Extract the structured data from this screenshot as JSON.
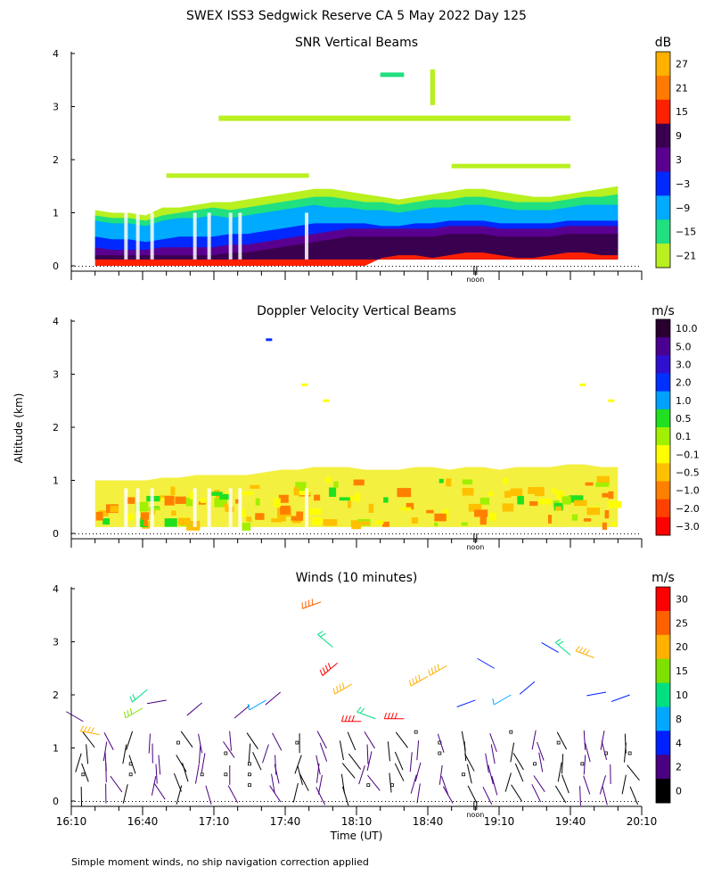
{
  "page_title": "SWEX ISS3 Sedgwick Reserve CA   5 May 2022 Day 125",
  "footnote": "Simple moment winds, no ship navigation correction applied",
  "chart_data": [
    {
      "type": "heatmap",
      "title": "SNR Vertical Beams",
      "ylabel": "",
      "xlabel": "",
      "ylim": [
        0,
        4
      ],
      "y_ticks": [
        "0",
        "1",
        "2",
        "3",
        "4"
      ],
      "noon_label": "noon",
      "colorbar_unit": "dB",
      "colorbar_labels": [
        "27",
        "21",
        "15",
        "9",
        "3",
        "−3",
        "−9",
        "−15",
        "−21"
      ],
      "colorbar_colors": [
        "#ffb000",
        "#ff7a00",
        "#ff2000",
        "#3a0050",
        "#5a0090",
        "#0028ff",
        "#00aaff",
        "#20e080",
        "#b8f020"
      ],
      "layers": [
        {
          "level": "-21",
          "color": "#b8f020",
          "top_km": [
            1.05,
            1.0,
            1.0,
            0.95,
            1.1,
            1.1,
            1.15,
            1.2,
            1.2,
            1.25,
            1.3,
            1.35,
            1.4,
            1.45,
            1.45,
            1.4,
            1.35,
            1.3,
            1.25,
            1.3,
            1.35,
            1.4,
            1.45,
            1.45,
            1.4,
            1.35,
            1.3,
            1.3,
            1.35,
            1.4,
            1.45,
            1.5
          ]
        },
        {
          "level": "-15",
          "color": "#20e080",
          "top_km": [
            0.95,
            0.9,
            0.9,
            0.85,
            0.95,
            1.0,
            1.05,
            1.1,
            1.05,
            1.1,
            1.15,
            1.2,
            1.25,
            1.3,
            1.3,
            1.25,
            1.2,
            1.2,
            1.15,
            1.2,
            1.25,
            1.25,
            1.3,
            1.3,
            1.25,
            1.2,
            1.2,
            1.2,
            1.25,
            1.3,
            1.3,
            1.35
          ]
        },
        {
          "level": "-9",
          "color": "#00aaff",
          "top_km": [
            0.85,
            0.8,
            0.8,
            0.75,
            0.85,
            0.9,
            0.9,
            0.95,
            0.9,
            0.95,
            1.0,
            1.05,
            1.1,
            1.15,
            1.1,
            1.1,
            1.05,
            1.05,
            1.0,
            1.05,
            1.1,
            1.1,
            1.15,
            1.15,
            1.1,
            1.05,
            1.05,
            1.05,
            1.1,
            1.15,
            1.15,
            1.15
          ]
        },
        {
          "level": "-3",
          "color": "#0028ff",
          "top_km": [
            0.55,
            0.5,
            0.5,
            0.45,
            0.5,
            0.55,
            0.55,
            0.55,
            0.6,
            0.6,
            0.65,
            0.7,
            0.75,
            0.8,
            0.8,
            0.8,
            0.8,
            0.75,
            0.75,
            0.8,
            0.8,
            0.85,
            0.85,
            0.85,
            0.8,
            0.8,
            0.8,
            0.8,
            0.85,
            0.85,
            0.85,
            0.85
          ]
        },
        {
          "level": "3",
          "color": "#5a0090",
          "top_km": [
            0.35,
            0.3,
            0.3,
            0.3,
            0.35,
            0.35,
            0.35,
            0.35,
            0.4,
            0.4,
            0.45,
            0.5,
            0.55,
            0.6,
            0.65,
            0.7,
            0.7,
            0.7,
            0.7,
            0.7,
            0.7,
            0.75,
            0.75,
            0.75,
            0.7,
            0.7,
            0.7,
            0.7,
            0.75,
            0.75,
            0.75,
            0.75
          ]
        },
        {
          "level": "9",
          "color": "#3a0050",
          "top_km": [
            0.2,
            0.2,
            0.2,
            0.2,
            0.2,
            0.2,
            0.2,
            0.2,
            0.25,
            0.25,
            0.3,
            0.35,
            0.4,
            0.45,
            0.5,
            0.55,
            0.55,
            0.55,
            0.55,
            0.55,
            0.55,
            0.6,
            0.6,
            0.6,
            0.55,
            0.55,
            0.55,
            0.55,
            0.6,
            0.6,
            0.6,
            0.6
          ]
        },
        {
          "level": "15",
          "color": "#ff2000",
          "top_km": [
            0,
            0,
            0,
            0,
            0,
            0,
            0,
            0,
            0,
            0,
            0,
            0,
            0,
            0,
            0,
            0,
            0,
            0.15,
            0.2,
            0.2,
            0.15,
            0.2,
            0.25,
            0.25,
            0.2,
            0.15,
            0.15,
            0.2,
            0.25,
            0.25,
            0.2,
            0.2
          ]
        }
      ],
      "features": [
        {
          "color": "#b8f020",
          "t_start": 62,
          "t_end": 210,
          "alt_km": 2.78,
          "width": 6
        },
        {
          "color": "#b8f020",
          "t_start": 160,
          "t_end": 210,
          "alt_km": 1.88,
          "width": 5
        },
        {
          "color": "#b8f020",
          "t_start": 40,
          "t_end": 100,
          "alt_km": 1.7,
          "width": 5
        },
        {
          "color": "#b8f020",
          "t_start": 151,
          "t_end": 153,
          "alt_km": 3.7,
          "width": 40
        },
        {
          "color": "#20e080",
          "t_start": 130,
          "t_end": 140,
          "alt_km": 3.6,
          "width": 5
        }
      ],
      "gaps_t": [
        23,
        28,
        34,
        52,
        58,
        67,
        71,
        99
      ]
    },
    {
      "type": "heatmap",
      "title": "Doppler Velocity Vertical Beams",
      "ylabel": "",
      "xlabel": "",
      "ylim": [
        0,
        4
      ],
      "y_ticks": [
        "0",
        "1",
        "2",
        "3",
        "4"
      ],
      "noon_label": "noon",
      "colorbar_unit": "m/s",
      "colorbar_labels": [
        "10.0",
        "5.0",
        "3.0",
        "2.0",
        "1.0",
        "0.5",
        "0.1",
        "−0.1",
        "−0.5",
        "−1.0",
        "−2.0",
        "−3.0"
      ],
      "colorbar_colors": [
        "#2a0030",
        "#4a0090",
        "#3010d0",
        "#0030ff",
        "#00a0ff",
        "#20e020",
        "#a0f000",
        "#ffff00",
        "#ffc000",
        "#ff8000",
        "#ff4000",
        "#ff0000"
      ],
      "data_top_km": [
        1.0,
        1.0,
        1.0,
        1.0,
        1.05,
        1.05,
        1.1,
        1.1,
        1.1,
        1.1,
        1.15,
        1.2,
        1.2,
        1.25,
        1.25,
        1.25,
        1.2,
        1.2,
        1.2,
        1.25,
        1.25,
        1.2,
        1.25,
        1.25,
        1.2,
        1.25,
        1.25,
        1.25,
        1.3,
        1.3,
        1.25,
        1.25
      ],
      "gaps_t": [
        23,
        28,
        34,
        52,
        58,
        67,
        71,
        99
      ],
      "isolated_points": [
        {
          "t": 83,
          "alt_km": 3.65,
          "color": "#0030ff"
        },
        {
          "t": 98,
          "alt_km": 2.8,
          "color": "#ffff00"
        },
        {
          "t": 107,
          "alt_km": 2.5,
          "color": "#ffff00"
        },
        {
          "t": 215,
          "alt_km": 2.8,
          "color": "#ffff00"
        },
        {
          "t": 227,
          "alt_km": 2.5,
          "color": "#ffff00"
        }
      ]
    },
    {
      "type": "scatter",
      "title": "Winds (10 minutes)",
      "xlabel": "Time (UT)",
      "ylabel": "Altitude (km)",
      "ylim": [
        0,
        4
      ],
      "xlim": [
        0,
        240
      ],
      "y_ticks": [
        "0",
        "1",
        "2",
        "3",
        "4"
      ],
      "x_tick_labels": [
        "16:10",
        "16:40",
        "17:10",
        "17:40",
        "18:10",
        "18:40",
        "19:10",
        "19:40",
        "20:10"
      ],
      "noon_label": "noon",
      "colorbar_unit": "m/s",
      "colorbar_labels": [
        "30",
        "25",
        "20",
        "15",
        "10",
        "8",
        "4",
        "2",
        "0"
      ],
      "colorbar_colors": [
        "#ff0000",
        "#ff6000",
        "#ffb000",
        "#80e000",
        "#00e080",
        "#00a8ff",
        "#0020ff",
        "#4a0080",
        "#000000"
      ],
      "barb_times_min": [
        5,
        15,
        25,
        35,
        45,
        55,
        65,
        75,
        85,
        95,
        105,
        115,
        125,
        135,
        145,
        155,
        165,
        175,
        185,
        195,
        205,
        215,
        225,
        235
      ],
      "barb_alt_km": [
        0.3,
        0.5,
        0.7,
        0.9,
        1.1,
        1.3
      ],
      "barb_color_index": [
        8,
        7,
        8,
        7,
        8,
        7,
        7,
        8,
        7,
        8,
        7,
        8,
        7,
        8,
        7,
        7,
        8,
        7,
        8,
        7,
        8,
        7,
        7,
        8
      ],
      "upper_barbs": [
        {
          "t": 5,
          "alt_km": 1.5,
          "dir_deg": 300,
          "speed_ms": 3
        },
        {
          "t": 12,
          "alt_km": 1.25,
          "dir_deg": 280,
          "speed_ms": 20
        },
        {
          "t": 30,
          "alt_km": 1.75,
          "dir_deg": 240,
          "speed_ms": 15
        },
        {
          "t": 32,
          "alt_km": 2.1,
          "dir_deg": 230,
          "speed_ms": 10
        },
        {
          "t": 40,
          "alt_km": 1.9,
          "dir_deg": 260,
          "speed_ms": 3
        },
        {
          "t": 55,
          "alt_km": 1.85,
          "dir_deg": 230,
          "speed_ms": 3
        },
        {
          "t": 75,
          "alt_km": 1.8,
          "dir_deg": 230,
          "speed_ms": 3
        },
        {
          "t": 82,
          "alt_km": 1.9,
          "dir_deg": 240,
          "speed_ms": 9
        },
        {
          "t": 88,
          "alt_km": 2.05,
          "dir_deg": 230,
          "speed_ms": 3
        },
        {
          "t": 105,
          "alt_km": 3.75,
          "dir_deg": 250,
          "speed_ms": 28
        },
        {
          "t": 110,
          "alt_km": 2.9,
          "dir_deg": 310,
          "speed_ms": 13
        },
        {
          "t": 112,
          "alt_km": 2.6,
          "dir_deg": 230,
          "speed_ms": 32
        },
        {
          "t": 118,
          "alt_km": 2.2,
          "dir_deg": 240,
          "speed_ms": 22
        },
        {
          "t": 122,
          "alt_km": 1.5,
          "dir_deg": 270,
          "speed_ms": 31
        },
        {
          "t": 128,
          "alt_km": 1.55,
          "dir_deg": 290,
          "speed_ms": 13
        },
        {
          "t": 140,
          "alt_km": 1.55,
          "dir_deg": 270,
          "speed_ms": 32
        },
        {
          "t": 150,
          "alt_km": 2.35,
          "dir_deg": 240,
          "speed_ms": 22
        },
        {
          "t": 158,
          "alt_km": 2.55,
          "dir_deg": 240,
          "speed_ms": 22
        },
        {
          "t": 170,
          "alt_km": 1.9,
          "dir_deg": 250,
          "speed_ms": 4
        },
        {
          "t": 178,
          "alt_km": 2.5,
          "dir_deg": 300,
          "speed_ms": 4
        },
        {
          "t": 185,
          "alt_km": 2.0,
          "dir_deg": 240,
          "speed_ms": 9
        },
        {
          "t": 195,
          "alt_km": 2.25,
          "dir_deg": 230,
          "speed_ms": 4
        },
        {
          "t": 205,
          "alt_km": 2.8,
          "dir_deg": 300,
          "speed_ms": 4
        },
        {
          "t": 210,
          "alt_km": 2.75,
          "dir_deg": 310,
          "speed_ms": 10
        },
        {
          "t": 220,
          "alt_km": 2.7,
          "dir_deg": 290,
          "speed_ms": 24
        },
        {
          "t": 225,
          "alt_km": 2.05,
          "dir_deg": 260,
          "speed_ms": 4
        },
        {
          "t": 235,
          "alt_km": 2.0,
          "dir_deg": 250,
          "speed_ms": 4
        }
      ]
    }
  ]
}
